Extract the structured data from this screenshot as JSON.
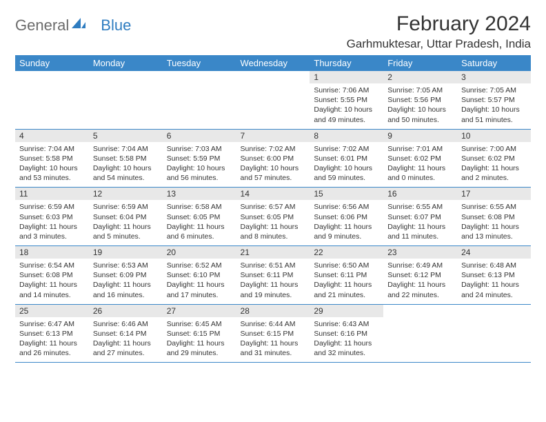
{
  "brand": {
    "part1": "General",
    "part2": "Blue"
  },
  "title": "February 2024",
  "location": "Garhmuktesar, Uttar Pradesh, India",
  "colors": {
    "header_bg": "#3a87c8",
    "header_text": "#ffffff",
    "daynum_bg": "#e8e8e8",
    "border": "#3a87c8",
    "logo_gray": "#6b6b6b",
    "logo_blue": "#2e7cc0"
  },
  "dayHeaders": [
    "Sunday",
    "Monday",
    "Tuesday",
    "Wednesday",
    "Thursday",
    "Friday",
    "Saturday"
  ],
  "weeks": [
    [
      {
        "n": "",
        "d": "",
        "empty": true
      },
      {
        "n": "",
        "d": "",
        "empty": true
      },
      {
        "n": "",
        "d": "",
        "empty": true
      },
      {
        "n": "",
        "d": "",
        "empty": true
      },
      {
        "n": "1",
        "d": "Sunrise: 7:06 AM\nSunset: 5:55 PM\nDaylight: 10 hours and 49 minutes."
      },
      {
        "n": "2",
        "d": "Sunrise: 7:05 AM\nSunset: 5:56 PM\nDaylight: 10 hours and 50 minutes."
      },
      {
        "n": "3",
        "d": "Sunrise: 7:05 AM\nSunset: 5:57 PM\nDaylight: 10 hours and 51 minutes."
      }
    ],
    [
      {
        "n": "4",
        "d": "Sunrise: 7:04 AM\nSunset: 5:58 PM\nDaylight: 10 hours and 53 minutes."
      },
      {
        "n": "5",
        "d": "Sunrise: 7:04 AM\nSunset: 5:58 PM\nDaylight: 10 hours and 54 minutes."
      },
      {
        "n": "6",
        "d": "Sunrise: 7:03 AM\nSunset: 5:59 PM\nDaylight: 10 hours and 56 minutes."
      },
      {
        "n": "7",
        "d": "Sunrise: 7:02 AM\nSunset: 6:00 PM\nDaylight: 10 hours and 57 minutes."
      },
      {
        "n": "8",
        "d": "Sunrise: 7:02 AM\nSunset: 6:01 PM\nDaylight: 10 hours and 59 minutes."
      },
      {
        "n": "9",
        "d": "Sunrise: 7:01 AM\nSunset: 6:02 PM\nDaylight: 11 hours and 0 minutes."
      },
      {
        "n": "10",
        "d": "Sunrise: 7:00 AM\nSunset: 6:02 PM\nDaylight: 11 hours and 2 minutes."
      }
    ],
    [
      {
        "n": "11",
        "d": "Sunrise: 6:59 AM\nSunset: 6:03 PM\nDaylight: 11 hours and 3 minutes."
      },
      {
        "n": "12",
        "d": "Sunrise: 6:59 AM\nSunset: 6:04 PM\nDaylight: 11 hours and 5 minutes."
      },
      {
        "n": "13",
        "d": "Sunrise: 6:58 AM\nSunset: 6:05 PM\nDaylight: 11 hours and 6 minutes."
      },
      {
        "n": "14",
        "d": "Sunrise: 6:57 AM\nSunset: 6:05 PM\nDaylight: 11 hours and 8 minutes."
      },
      {
        "n": "15",
        "d": "Sunrise: 6:56 AM\nSunset: 6:06 PM\nDaylight: 11 hours and 9 minutes."
      },
      {
        "n": "16",
        "d": "Sunrise: 6:55 AM\nSunset: 6:07 PM\nDaylight: 11 hours and 11 minutes."
      },
      {
        "n": "17",
        "d": "Sunrise: 6:55 AM\nSunset: 6:08 PM\nDaylight: 11 hours and 13 minutes."
      }
    ],
    [
      {
        "n": "18",
        "d": "Sunrise: 6:54 AM\nSunset: 6:08 PM\nDaylight: 11 hours and 14 minutes."
      },
      {
        "n": "19",
        "d": "Sunrise: 6:53 AM\nSunset: 6:09 PM\nDaylight: 11 hours and 16 minutes."
      },
      {
        "n": "20",
        "d": "Sunrise: 6:52 AM\nSunset: 6:10 PM\nDaylight: 11 hours and 17 minutes."
      },
      {
        "n": "21",
        "d": "Sunrise: 6:51 AM\nSunset: 6:11 PM\nDaylight: 11 hours and 19 minutes."
      },
      {
        "n": "22",
        "d": "Sunrise: 6:50 AM\nSunset: 6:11 PM\nDaylight: 11 hours and 21 minutes."
      },
      {
        "n": "23",
        "d": "Sunrise: 6:49 AM\nSunset: 6:12 PM\nDaylight: 11 hours and 22 minutes."
      },
      {
        "n": "24",
        "d": "Sunrise: 6:48 AM\nSunset: 6:13 PM\nDaylight: 11 hours and 24 minutes."
      }
    ],
    [
      {
        "n": "25",
        "d": "Sunrise: 6:47 AM\nSunset: 6:13 PM\nDaylight: 11 hours and 26 minutes."
      },
      {
        "n": "26",
        "d": "Sunrise: 6:46 AM\nSunset: 6:14 PM\nDaylight: 11 hours and 27 minutes."
      },
      {
        "n": "27",
        "d": "Sunrise: 6:45 AM\nSunset: 6:15 PM\nDaylight: 11 hours and 29 minutes."
      },
      {
        "n": "28",
        "d": "Sunrise: 6:44 AM\nSunset: 6:15 PM\nDaylight: 11 hours and 31 minutes."
      },
      {
        "n": "29",
        "d": "Sunrise: 6:43 AM\nSunset: 6:16 PM\nDaylight: 11 hours and 32 minutes."
      },
      {
        "n": "",
        "d": "",
        "empty": true
      },
      {
        "n": "",
        "d": "",
        "empty": true
      }
    ]
  ]
}
